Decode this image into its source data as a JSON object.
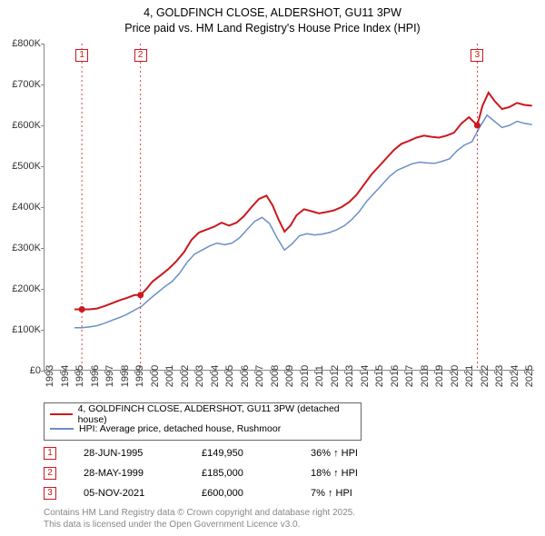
{
  "title_line1": "4, GOLDFINCH CLOSE, ALDERSHOT, GU11 3PW",
  "title_line2": "Price paid vs. HM Land Registry's House Price Index (HPI)",
  "chart": {
    "type": "line",
    "background_color": "#ffffff",
    "grid_color": "#cccccc",
    "x_years": [
      1993,
      1994,
      1995,
      1996,
      1997,
      1998,
      1999,
      2000,
      2001,
      2002,
      2003,
      2004,
      2005,
      2006,
      2007,
      2008,
      2009,
      2010,
      2011,
      2012,
      2013,
      2014,
      2015,
      2016,
      2017,
      2018,
      2019,
      2020,
      2021,
      2022,
      2023,
      2024,
      2025
    ],
    "ylim": [
      0,
      800000
    ],
    "yticks": [
      0,
      100000,
      200000,
      300000,
      400000,
      500000,
      600000,
      700000,
      800000
    ],
    "ytick_labels": [
      "£0",
      "£100K",
      "£200K",
      "£300K",
      "£400K",
      "£500K",
      "£600K",
      "£700K",
      "£800K"
    ],
    "series": [
      {
        "name": "4, GOLDFINCH CLOSE, ALDERSHOT, GU11 3PW (detached house)",
        "color": "#cb181d",
        "width": 2,
        "points": [
          [
            1995.0,
            149950
          ],
          [
            1995.5,
            149950
          ],
          [
            1996.0,
            150000
          ],
          [
            1996.5,
            152000
          ],
          [
            1997.0,
            158000
          ],
          [
            1997.5,
            165000
          ],
          [
            1998.0,
            172000
          ],
          [
            1998.5,
            178000
          ],
          [
            1999.0,
            185000
          ],
          [
            1999.4,
            185000
          ],
          [
            1999.8,
            200000
          ],
          [
            2000.2,
            218000
          ],
          [
            2000.8,
            235000
          ],
          [
            2001.3,
            250000
          ],
          [
            2001.8,
            268000
          ],
          [
            2002.3,
            290000
          ],
          [
            2002.8,
            320000
          ],
          [
            2003.3,
            338000
          ],
          [
            2003.8,
            345000
          ],
          [
            2004.3,
            352000
          ],
          [
            2004.8,
            362000
          ],
          [
            2005.3,
            355000
          ],
          [
            2005.8,
            362000
          ],
          [
            2006.3,
            378000
          ],
          [
            2006.8,
            400000
          ],
          [
            2007.3,
            420000
          ],
          [
            2007.8,
            428000
          ],
          [
            2008.2,
            405000
          ],
          [
            2008.6,
            370000
          ],
          [
            2009.0,
            340000
          ],
          [
            2009.4,
            355000
          ],
          [
            2009.8,
            380000
          ],
          [
            2010.3,
            395000
          ],
          [
            2010.8,
            390000
          ],
          [
            2011.3,
            385000
          ],
          [
            2011.8,
            388000
          ],
          [
            2012.3,
            392000
          ],
          [
            2012.8,
            400000
          ],
          [
            2013.3,
            412000
          ],
          [
            2013.8,
            430000
          ],
          [
            2014.3,
            455000
          ],
          [
            2014.8,
            480000
          ],
          [
            2015.3,
            500000
          ],
          [
            2015.8,
            520000
          ],
          [
            2016.3,
            540000
          ],
          [
            2016.8,
            555000
          ],
          [
            2017.3,
            562000
          ],
          [
            2017.8,
            570000
          ],
          [
            2018.3,
            575000
          ],
          [
            2018.8,
            572000
          ],
          [
            2019.3,
            570000
          ],
          [
            2019.8,
            575000
          ],
          [
            2020.3,
            582000
          ],
          [
            2020.8,
            605000
          ],
          [
            2021.3,
            620000
          ],
          [
            2021.85,
            600000
          ],
          [
            2022.2,
            648000
          ],
          [
            2022.6,
            680000
          ],
          [
            2023.0,
            660000
          ],
          [
            2023.5,
            640000
          ],
          [
            2024.0,
            645000
          ],
          [
            2024.5,
            655000
          ],
          [
            2025.0,
            650000
          ],
          [
            2025.5,
            648000
          ]
        ]
      },
      {
        "name": "HPI: Average price, detached house, Rushmoor",
        "color": "#6b8fc7",
        "width": 1.5,
        "points": [
          [
            1995.0,
            105000
          ],
          [
            1995.5,
            105000
          ],
          [
            1996.0,
            107000
          ],
          [
            1996.5,
            110000
          ],
          [
            1997.0,
            116000
          ],
          [
            1997.5,
            123000
          ],
          [
            1998.0,
            130000
          ],
          [
            1998.5,
            138000
          ],
          [
            1999.0,
            148000
          ],
          [
            1999.5,
            158000
          ],
          [
            2000.0,
            175000
          ],
          [
            2000.5,
            190000
          ],
          [
            2001.0,
            205000
          ],
          [
            2001.5,
            218000
          ],
          [
            2002.0,
            238000
          ],
          [
            2002.5,
            265000
          ],
          [
            2003.0,
            285000
          ],
          [
            2003.5,
            295000
          ],
          [
            2004.0,
            305000
          ],
          [
            2004.5,
            312000
          ],
          [
            2005.0,
            308000
          ],
          [
            2005.5,
            312000
          ],
          [
            2006.0,
            325000
          ],
          [
            2006.5,
            345000
          ],
          [
            2007.0,
            365000
          ],
          [
            2007.5,
            375000
          ],
          [
            2008.0,
            360000
          ],
          [
            2008.5,
            325000
          ],
          [
            2009.0,
            295000
          ],
          [
            2009.5,
            310000
          ],
          [
            2010.0,
            330000
          ],
          [
            2010.5,
            335000
          ],
          [
            2011.0,
            332000
          ],
          [
            2011.5,
            334000
          ],
          [
            2012.0,
            338000
          ],
          [
            2012.5,
            345000
          ],
          [
            2013.0,
            355000
          ],
          [
            2013.5,
            370000
          ],
          [
            2014.0,
            390000
          ],
          [
            2014.5,
            415000
          ],
          [
            2015.0,
            435000
          ],
          [
            2015.5,
            455000
          ],
          [
            2016.0,
            475000
          ],
          [
            2016.5,
            490000
          ],
          [
            2017.0,
            498000
          ],
          [
            2017.5,
            506000
          ],
          [
            2018.0,
            510000
          ],
          [
            2018.5,
            508000
          ],
          [
            2019.0,
            507000
          ],
          [
            2019.5,
            512000
          ],
          [
            2020.0,
            518000
          ],
          [
            2020.5,
            538000
          ],
          [
            2021.0,
            552000
          ],
          [
            2021.5,
            560000
          ],
          [
            2022.0,
            595000
          ],
          [
            2022.5,
            625000
          ],
          [
            2023.0,
            610000
          ],
          [
            2023.5,
            595000
          ],
          [
            2024.0,
            600000
          ],
          [
            2024.5,
            610000
          ],
          [
            2025.0,
            605000
          ],
          [
            2025.5,
            602000
          ]
        ]
      }
    ],
    "event_markers": [
      {
        "id": "1",
        "year": 1995.49,
        "dot_y": 149950,
        "dot_color": "#cb181d"
      },
      {
        "id": "2",
        "year": 1999.4,
        "dot_y": 185000,
        "dot_color": "#cb181d"
      },
      {
        "id": "3",
        "year": 2021.85,
        "dot_y": 600000,
        "dot_color": "#cb181d"
      }
    ]
  },
  "legend": {
    "items": [
      {
        "color": "#cb181d",
        "label": "4, GOLDFINCH CLOSE, ALDERSHOT, GU11 3PW (detached house)"
      },
      {
        "color": "#6b8fc7",
        "label": "HPI: Average price, detached house, Rushmoor"
      }
    ]
  },
  "marker_rows": [
    {
      "id": "1",
      "date": "28-JUN-1995",
      "price": "£149,950",
      "diff": "36% ↑ HPI"
    },
    {
      "id": "2",
      "date": "28-MAY-1999",
      "price": "£185,000",
      "diff": "18% ↑ HPI"
    },
    {
      "id": "3",
      "date": "05-NOV-2021",
      "price": "£600,000",
      "diff": "7% ↑ HPI"
    }
  ],
  "footer_line1": "Contains HM Land Registry data © Crown copyright and database right 2025.",
  "footer_line2": "This data is licensed under the Open Government Licence v3.0."
}
